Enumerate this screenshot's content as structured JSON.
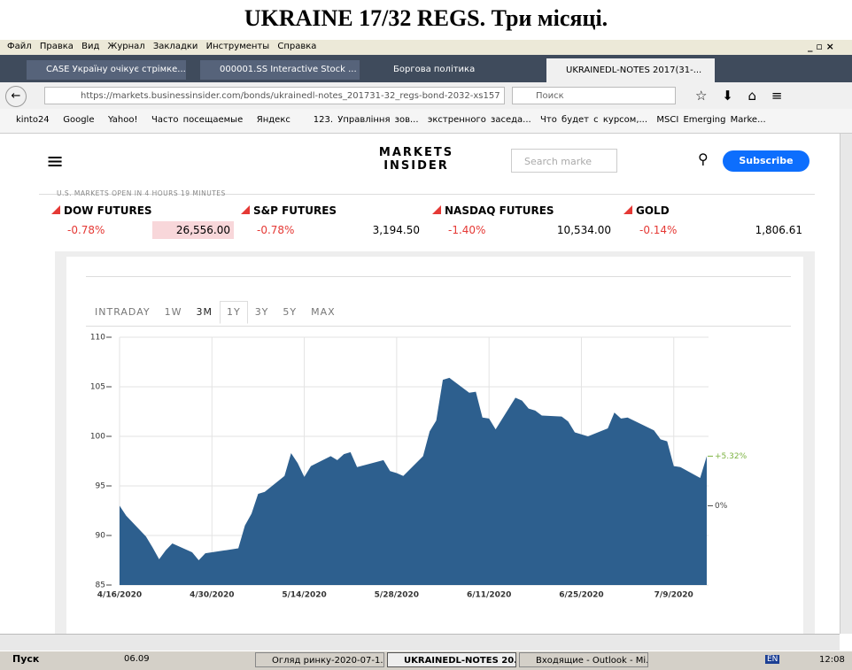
{
  "title": "UKRAINE 17/32 REGS. Три місяці.",
  "browser": {
    "menu": [
      "Файл",
      "Правка",
      "Вид",
      "Журнал",
      "Закладки",
      "Инструменты",
      "Справка"
    ],
    "tabs": [
      "CASE Україну очікує стрімке...",
      "000001.SS Interactive Stock ...",
      "Боргова політика",
      "UKRAINEDL-NOTES 2017(31-..."
    ],
    "url": "https://markets.businessinsider.com/bonds/ukrainedl-notes_201731-32_regs-bond-2032-xs157",
    "search": "Поиск",
    "bookmarks": [
      "kinto24",
      "Google",
      "Yahoo!",
      "Часто посещаемые",
      "Яндекс",
      "123. Управління зов...",
      "экстренного заседа...",
      "Что будет с курсом,...",
      "MSCI Emerging Marke..."
    ]
  },
  "site": {
    "logo_top": "MARKETS",
    "logo_bottom": "INSIDER",
    "search_placeholder": "Search marke",
    "subscribe": "Subscribe",
    "market_status": "U.S. MARKETS OPEN IN 4 HOURS 19 MINUTES",
    "tickers": [
      {
        "name": "DOW FUTURES",
        "change": "-0.78%",
        "price": "26,556.00"
      },
      {
        "name": "S&P FUTURES",
        "change": "-0.78%",
        "price": "3,194.50"
      },
      {
        "name": "NASDAQ FUTURES",
        "change": "-1.40%",
        "price": "10,534.00"
      },
      {
        "name": "GOLD",
        "change": "-0.14%",
        "price": "1,806.61"
      }
    ]
  },
  "chart_tabs": [
    "INTRADAY",
    "1W",
    "3M",
    "1Y",
    "3Y",
    "5Y",
    "MAX"
  ],
  "chart_data": {
    "type": "area",
    "color": "#2d5f8e",
    "x": [
      "4/16/2020",
      "4/17/2020",
      "4/20/2020",
      "4/21/2020",
      "4/22/2020",
      "4/23/2020",
      "4/24/2020",
      "4/27/2020",
      "4/28/2020",
      "4/29/2020",
      "4/30/2020",
      "5/1/2020",
      "5/4/2020",
      "5/5/2020",
      "5/6/2020",
      "5/7/2020",
      "5/8/2020",
      "5/11/2020",
      "5/12/2020",
      "5/13/2020",
      "5/14/2020",
      "5/15/2020",
      "5/18/2020",
      "5/19/2020",
      "5/20/2020",
      "5/21/2020",
      "5/22/2020",
      "5/26/2020",
      "5/27/2020",
      "5/28/2020",
      "5/29/2020",
      "6/1/2020",
      "6/2/2020",
      "6/3/2020",
      "6/4/2020",
      "6/5/2020",
      "6/8/2020",
      "6/9/2020",
      "6/10/2020",
      "6/11/2020",
      "6/12/2020",
      "6/15/2020",
      "6/16/2020",
      "6/17/2020",
      "6/18/2020",
      "6/19/2020",
      "6/22/2020",
      "6/23/2020",
      "6/24/2020",
      "6/25/2020",
      "6/26/2020",
      "6/29/2020",
      "6/30/2020",
      "7/1/2020",
      "7/2/2020",
      "7/6/2020",
      "7/7/2020",
      "7/8/2020",
      "7/9/2020",
      "7/10/2020",
      "7/13/2020",
      "7/14/2020"
    ],
    "values": [
      93.0,
      92.0,
      89.9,
      88.8,
      87.6,
      88.5,
      89.2,
      88.3,
      87.5,
      88.2,
      88.3,
      88.4,
      88.7,
      91.0,
      92.2,
      94.2,
      94.4,
      96.0,
      98.3,
      97.3,
      95.9,
      97.0,
      98.0,
      97.6,
      98.2,
      98.4,
      96.9,
      97.6,
      96.5,
      96.3,
      96.0,
      98.0,
      100.5,
      101.6,
      105.7,
      105.9,
      104.4,
      104.5,
      101.9,
      101.8,
      100.7,
      103.9,
      103.6,
      102.8,
      102.6,
      102.1,
      102.0,
      101.5,
      100.4,
      100.2,
      100.0,
      100.8,
      102.4,
      101.8,
      101.9,
      100.6,
      99.7,
      99.5,
      97.0,
      96.9,
      95.8,
      98.0
    ],
    "xlim": [
      "4/16/2020",
      "7/14/2020"
    ],
    "xticks": [
      "4/16/2020",
      "4/30/2020",
      "5/14/2020",
      "5/28/2020",
      "6/11/2020",
      "6/25/2020",
      "7/9/2020"
    ],
    "ylim": [
      85,
      110
    ],
    "yticks": [
      85,
      90,
      95,
      100,
      105,
      110
    ],
    "grid": true,
    "annotations": [
      {
        "text": "+5.32%",
        "y": 98.0,
        "color": "#7cb342"
      },
      {
        "text": "0%",
        "y": 93.0,
        "color": "#444"
      }
    ]
  },
  "taskbar": {
    "start": "Пуск",
    "items": [
      "06.09",
      "Огляд ринку-2020-07-1...",
      "UKRAINEDL-NOTES 20...",
      "Входящие - Outlook - Mi..."
    ],
    "lang": "EN",
    "clock": "12:08"
  }
}
